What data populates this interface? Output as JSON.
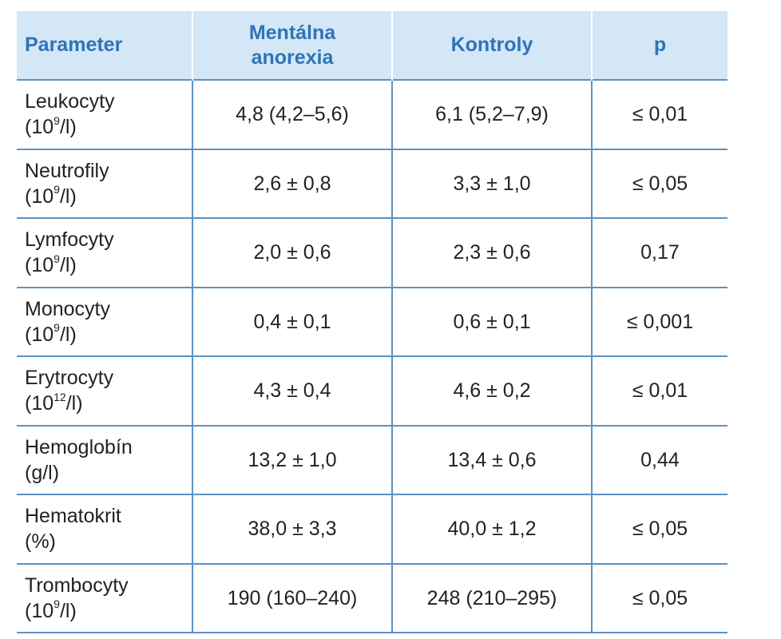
{
  "table": {
    "headers": {
      "parameter": "Parameter",
      "group1_line1": "Mentálna",
      "group1_line2": "anorexia",
      "group2": "Kontroly",
      "p": "p"
    },
    "rows": [
      {
        "name": "Leukocyty",
        "unit_pre": "(10",
        "unit_sup": "9",
        "unit_post": "/l)",
        "anorexia": "4,8 (4,2–5,6)",
        "kontroly": "6,1 (5,2–7,9)",
        "p": "≤ 0,01"
      },
      {
        "name": "Neutrofily",
        "unit_pre": "(10",
        "unit_sup": "9",
        "unit_post": "/l)",
        "anorexia": "2,6 ± 0,8",
        "kontroly": "3,3 ± 1,0",
        "p": "≤ 0,05"
      },
      {
        "name": "Lymfocyty",
        "unit_pre": "(10",
        "unit_sup": "9",
        "unit_post": "/l)",
        "anorexia": "2,0 ± 0,6",
        "kontroly": "2,3 ± 0,6",
        "p": "0,17"
      },
      {
        "name": "Monocyty",
        "unit_pre": "(10",
        "unit_sup": "9",
        "unit_post": "/l)",
        "anorexia": "0,4 ± 0,1",
        "kontroly": "0,6 ± 0,1",
        "p": "≤ 0,001"
      },
      {
        "name": "Erytrocyty",
        "unit_pre": "(10",
        "unit_sup": "12",
        "unit_post": "/l)",
        "anorexia": "4,3 ± 0,4",
        "kontroly": "4,6 ± 0,2",
        "p": "≤ 0,01"
      },
      {
        "name": "Hemoglobín",
        "unit_pre": "(g/l)",
        "unit_sup": "",
        "unit_post": "",
        "anorexia": "13,2 ± 1,0",
        "kontroly": "13,4 ± 0,6",
        "p": "0,44"
      },
      {
        "name": "Hematokrit",
        "unit_pre": "(%)",
        "unit_sup": "",
        "unit_post": "",
        "anorexia": "38,0 ± 3,3",
        "kontroly": "40,0 ± 1,2",
        "p": "≤ 0,05"
      },
      {
        "name": "Trombocyty",
        "unit_pre": "(10",
        "unit_sup": "9",
        "unit_post": "/l)",
        "anorexia": "190 (160–240)",
        "kontroly": "248 (210–295)",
        "p": "≤ 0,05"
      }
    ]
  },
  "colors": {
    "header_bg": "#d3e7f6",
    "header_text": "#2f73b6",
    "grid_lines": "#5b92c4",
    "body_text": "#222222"
  }
}
